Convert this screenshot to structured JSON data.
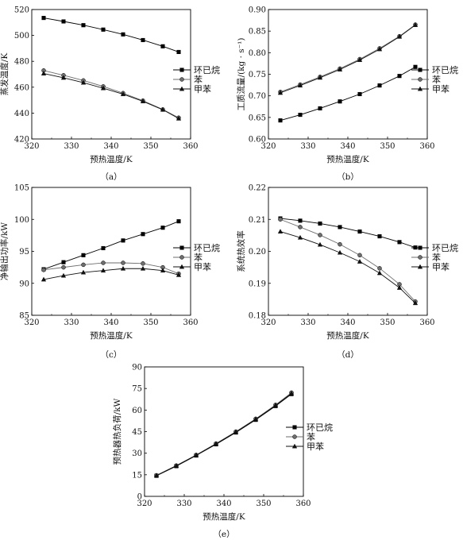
{
  "figure": {
    "caption_suffix": "",
    "colors": {
      "frame": "#000000",
      "cyclohexane": "#000000",
      "benzene": "#6e6e6e",
      "toluene": "#111111",
      "marker_edge": "#000000"
    }
  },
  "legend_markers": {
    "cyclohexane": "square",
    "benzene": "circle",
    "toluene": "triangle"
  },
  "chart_data": [
    {
      "id": "a",
      "type": "line",
      "caption": "（a）",
      "xlabel": "预热温度/K",
      "ylabel": "蒸发温度/K",
      "xlim": [
        320,
        360
      ],
      "ylim": [
        420,
        520
      ],
      "xticks": [
        320,
        330,
        340,
        350,
        360
      ],
      "yticks": [
        420,
        440,
        460,
        480,
        500,
        520
      ],
      "grid": false,
      "legend_position": "right",
      "x": [
        323,
        328,
        333,
        338,
        343,
        348,
        353,
        357
      ],
      "series": [
        {
          "name": "环已烷",
          "marker": "square",
          "values": [
            513.5,
            510.8,
            507.9,
            504.5,
            500.8,
            496.4,
            491.6,
            487.2
          ]
        },
        {
          "name": "苯",
          "marker": "circle",
          "values": [
            472.9,
            469.2,
            465.2,
            460.6,
            455.4,
            449.6,
            442.8,
            436.4
          ]
        },
        {
          "name": "甲苯",
          "marker": "triangle",
          "values": [
            470.6,
            467.3,
            463.5,
            459.2,
            454.6,
            449.1,
            442.6,
            435.8
          ]
        }
      ]
    },
    {
      "id": "b",
      "type": "line",
      "caption": "（b）",
      "xlabel": "预热温度/K",
      "ylabel": "工质流量/(kg · s⁻¹)",
      "xlim": [
        320,
        360
      ],
      "ylim": [
        0.6,
        0.9
      ],
      "xticks": [
        320,
        330,
        340,
        350,
        360
      ],
      "yticks": [
        0.6,
        0.65,
        0.7,
        0.75,
        0.8,
        0.85,
        0.9
      ],
      "ytick_labels": [
        "0.60",
        "0.65",
        "0.70",
        "0.75",
        "0.80",
        "0.85",
        "0.90"
      ],
      "grid": false,
      "legend_position": "right",
      "x": [
        323,
        328,
        333,
        338,
        343,
        348,
        353,
        357
      ],
      "series": [
        {
          "name": "环已烷",
          "marker": "square",
          "values": [
            0.643,
            0.656,
            0.671,
            0.687,
            0.704,
            0.724,
            0.746,
            0.767
          ]
        },
        {
          "name": "苯",
          "marker": "circle",
          "values": [
            0.709,
            0.726,
            0.744,
            0.763,
            0.785,
            0.81,
            0.838,
            0.865
          ]
        },
        {
          "name": "甲苯",
          "marker": "triangle",
          "values": [
            0.707,
            0.724,
            0.742,
            0.761,
            0.783,
            0.808,
            0.837,
            0.864
          ]
        }
      ]
    },
    {
      "id": "c",
      "type": "line",
      "caption": "（c）",
      "xlabel": "预热温度/K",
      "ylabel": "净输出功率/kW",
      "xlim": [
        320,
        360
      ],
      "ylim": [
        85,
        105
      ],
      "xticks": [
        320,
        330,
        340,
        350,
        360
      ],
      "yticks": [
        85,
        90,
        95,
        100,
        105
      ],
      "grid": false,
      "legend_position": "right",
      "x": [
        323,
        328,
        333,
        338,
        343,
        348,
        353,
        357
      ],
      "series": [
        {
          "name": "环已烷",
          "marker": "square",
          "values": [
            92.2,
            93.3,
            94.4,
            95.5,
            96.7,
            97.7,
            98.7,
            99.7
          ]
        },
        {
          "name": "苯",
          "marker": "circle",
          "values": [
            92.1,
            92.5,
            92.9,
            93.2,
            93.2,
            93.1,
            92.5,
            91.5
          ]
        },
        {
          "name": "甲苯",
          "marker": "triangle",
          "values": [
            90.6,
            91.2,
            91.7,
            92.0,
            92.3,
            92.3,
            92.0,
            91.3
          ]
        }
      ]
    },
    {
      "id": "d",
      "type": "line",
      "caption": "（d）",
      "xlabel": "预热温度/K",
      "ylabel": "系统热效率",
      "xlim": [
        320,
        360
      ],
      "ylim": [
        0.18,
        0.22
      ],
      "xticks": [
        320,
        330,
        340,
        350,
        360
      ],
      "yticks": [
        0.18,
        0.19,
        0.2,
        0.21,
        0.22
      ],
      "ytick_labels": [
        "0.18",
        "0.19",
        "0.20",
        "0.21",
        "0.22"
      ],
      "grid": false,
      "legend_position": "right",
      "x": [
        323,
        328,
        333,
        338,
        343,
        348,
        353,
        357
      ],
      "series": [
        {
          "name": "环已烷",
          "marker": "square",
          "values": [
            0.2103,
            0.2096,
            0.2087,
            0.2076,
            0.2062,
            0.2047,
            0.2029,
            0.2012
          ]
        },
        {
          "name": "苯",
          "marker": "circle",
          "values": [
            0.21,
            0.2076,
            0.2051,
            0.2022,
            0.1988,
            0.1947,
            0.1897,
            0.1843
          ]
        },
        {
          "name": "甲苯",
          "marker": "triangle",
          "values": [
            0.2062,
            0.2043,
            0.2021,
            0.1996,
            0.1968,
            0.1932,
            0.1886,
            0.1838
          ]
        }
      ]
    },
    {
      "id": "e",
      "type": "line",
      "caption": "（e）",
      "xlabel": "预热温度/K",
      "ylabel": "预热器热负荷/kW",
      "xlim": [
        320,
        360
      ],
      "ylim": [
        0,
        90
      ],
      "xticks": [
        320,
        330,
        340,
        350,
        360
      ],
      "yticks": [
        0,
        15,
        30,
        45,
        60,
        75,
        90
      ],
      "grid": false,
      "legend_position": "right",
      "x": [
        323,
        328,
        333,
        338,
        343,
        348,
        353,
        357
      ],
      "series": [
        {
          "name": "环已烷",
          "marker": "square",
          "values": [
            14.3,
            21.0,
            28.4,
            36.2,
            44.4,
            53.2,
            62.8,
            71.1
          ]
        },
        {
          "name": "苯",
          "marker": "circle",
          "values": [
            14.6,
            21.4,
            28.8,
            36.7,
            45.0,
            53.9,
            63.6,
            72.1
          ]
        },
        {
          "name": "甲苯",
          "marker": "triangle",
          "values": [
            14.5,
            21.3,
            28.6,
            36.5,
            44.7,
            53.6,
            63.2,
            71.6
          ]
        }
      ]
    }
  ]
}
